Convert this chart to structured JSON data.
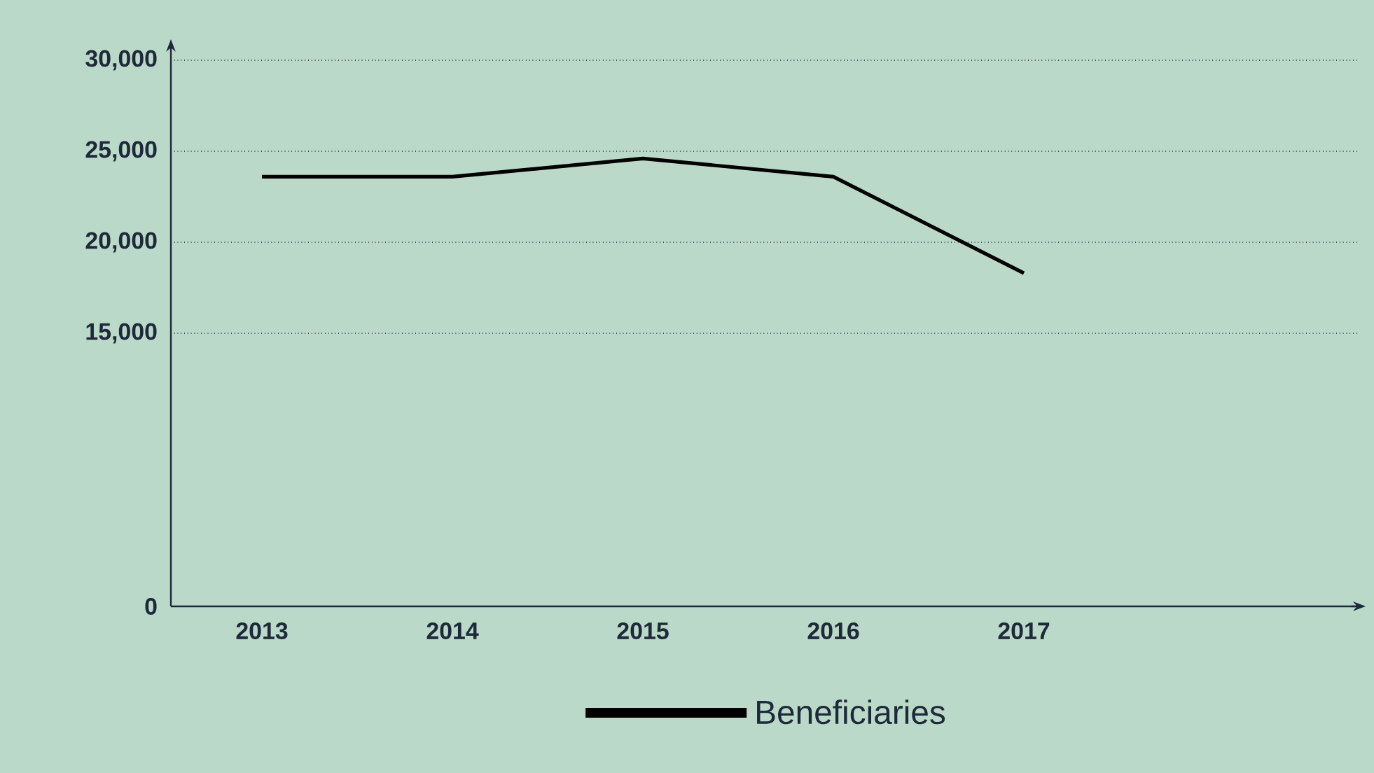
{
  "chart_data": {
    "type": "line",
    "categories": [
      "2013",
      "2014",
      "2015",
      "2016",
      "2017"
    ],
    "series": [
      {
        "name": "Beneficiaries",
        "color": "#000000",
        "values": [
          23600,
          23600,
          24600,
          23600,
          18300
        ]
      }
    ],
    "ylim": [
      0,
      30000
    ],
    "yticks": [
      {
        "value": 0,
        "label": "0"
      },
      {
        "value": 15000,
        "label": "15,000"
      },
      {
        "value": 20000,
        "label": "20,000"
      },
      {
        "value": 25000,
        "label": "25,000"
      },
      {
        "value": 30000,
        "label": "30,000"
      }
    ],
    "grid": "y",
    "legend": "bottom",
    "marker": "none",
    "line_style": "solid"
  }
}
